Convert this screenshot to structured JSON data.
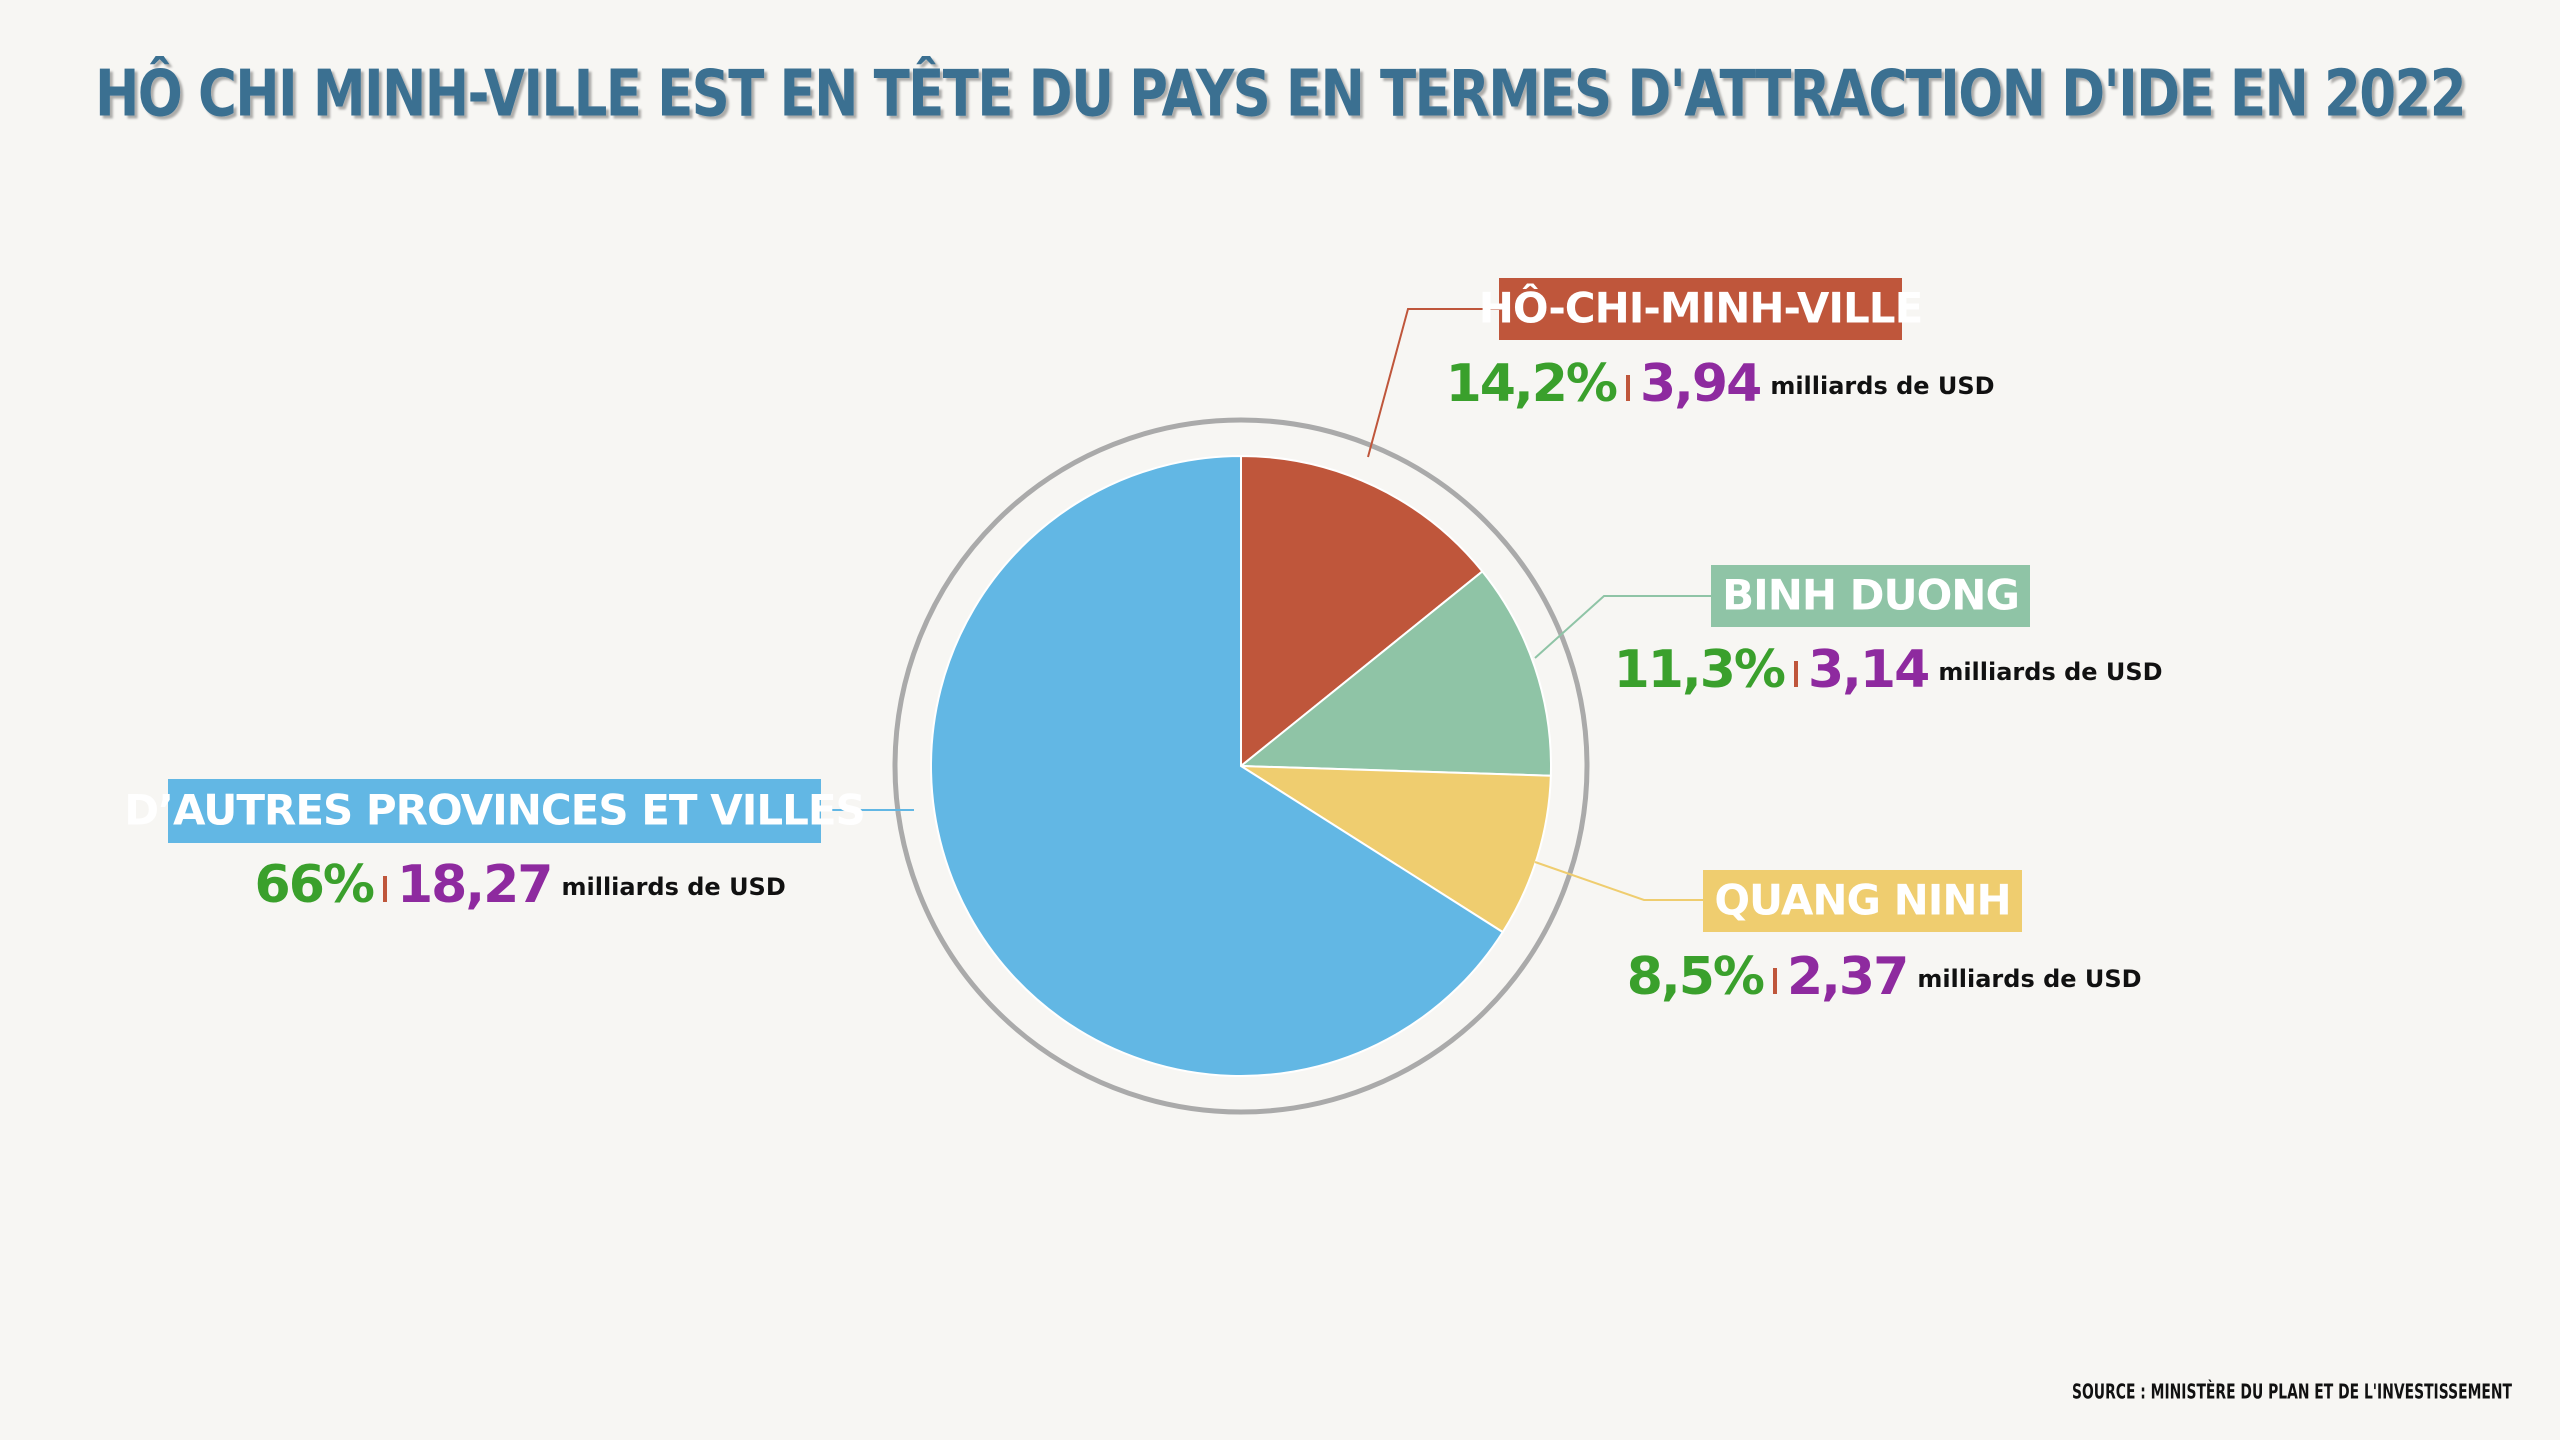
{
  "chart_data": {
    "type": "pie",
    "title": "HÔ CHI MINH-VILLE EST EN TÊTE DU PAYS EN TERMES D'ATTRACTION D'IDE EN 2022",
    "source": "SOURCE : MINISTÈRE DU PLAN ET DE L'INVESTISSEMENT",
    "categories": [
      "HÔ-CHI-MINH-VILLE",
      "BINH DUONG",
      "QUANG NINH",
      "D’AUTRES PROVINCES ET VILLES"
    ],
    "values": [
      14.2,
      11.3,
      8.5,
      66
    ],
    "value_labels": [
      "14,2%",
      "11,3%",
      "8,5%",
      "66%"
    ],
    "colors": [
      "#bf563b",
      "#8fc4a6",
      "#efcd6f",
      "#62b7e4"
    ],
    "amounts": [
      3.94,
      3.14,
      2.37,
      18.27
    ],
    "amount_labels": [
      "3,94",
      "3,14",
      "2,37",
      "18,27"
    ],
    "amount_unit": "milliards de USD"
  }
}
